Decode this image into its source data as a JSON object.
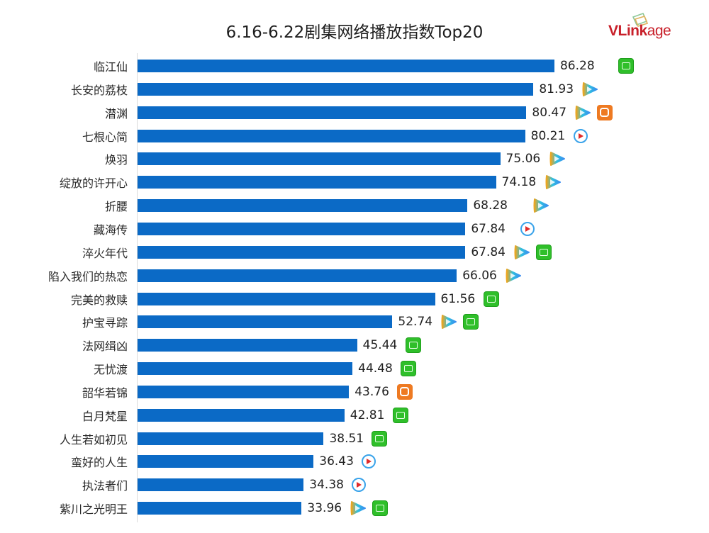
{
  "header": {
    "title": "6.16-6.22剧集网络播放指数Top20",
    "logo_text_bold": "VLink",
    "logo_text_light": "age"
  },
  "colors": {
    "bar": "#0b6ac6",
    "logo_red": "#c8202a",
    "iqiyi_green": "#2fbf2a",
    "mango_orange": "#ee7a22",
    "youku_blue": "#3aa3ea",
    "tencent_gradient": [
      "#f2a51a",
      "#2fc0e0",
      "#3a8cf0"
    ]
  },
  "chart_data": {
    "type": "bar",
    "orientation": "horizontal",
    "title": "6.16-6.22剧集网络播放指数Top20",
    "xlabel": "",
    "ylabel": "",
    "xlim": [
      0,
      90
    ],
    "grid": false,
    "legend": null,
    "categories": [
      "临江仙",
      "长安的荔枝",
      "潜渊",
      "七根心简",
      "焕羽",
      "绽放的许开心",
      "折腰",
      "藏海传",
      "淬火年代",
      "陷入我们的热恋",
      "完美的救赎",
      "护宝寻踪",
      "法网缉凶",
      "无忧渡",
      "韶华若锦",
      "白月梵星",
      "人生若如初见",
      "蛮好的人生",
      "执法者们",
      "紫川之光明王"
    ],
    "values": [
      86.28,
      81.93,
      80.47,
      80.21,
      75.06,
      74.18,
      68.28,
      67.84,
      67.84,
      66.06,
      61.56,
      52.74,
      45.44,
      44.48,
      43.76,
      42.81,
      38.51,
      36.43,
      34.38,
      33.96
    ],
    "value_labels": [
      "86.28",
      "81.93",
      "80.47",
      "80.21",
      "75.06",
      "74.18",
      "68.28",
      "67.84",
      "67.84",
      "66.06",
      "61.56",
      "52.74",
      "45.44",
      "44.48",
      "43.76",
      "42.81",
      "38.51",
      "36.43",
      "34.38",
      "33.96"
    ],
    "platforms": [
      [
        "iqiyi"
      ],
      [
        "tencent"
      ],
      [
        "tencent",
        "mango"
      ],
      [
        "youku"
      ],
      [
        "tencent"
      ],
      [
        "tencent"
      ],
      [
        "tencent"
      ],
      [
        "youku"
      ],
      [
        "tencent",
        "iqiyi"
      ],
      [
        "tencent"
      ],
      [
        "iqiyi"
      ],
      [
        "tencent",
        "iqiyi"
      ],
      [
        "iqiyi"
      ],
      [
        "iqiyi"
      ],
      [
        "mango"
      ],
      [
        "iqiyi"
      ],
      [
        "iqiyi"
      ],
      [
        "youku"
      ],
      [
        "youku"
      ],
      [
        "tencent",
        "iqiyi"
      ]
    ]
  },
  "platform_icons": {
    "iqiyi": "iqiyi-icon",
    "tencent": "tencent-video-icon",
    "mango": "mango-tv-icon",
    "youku": "youku-icon"
  }
}
